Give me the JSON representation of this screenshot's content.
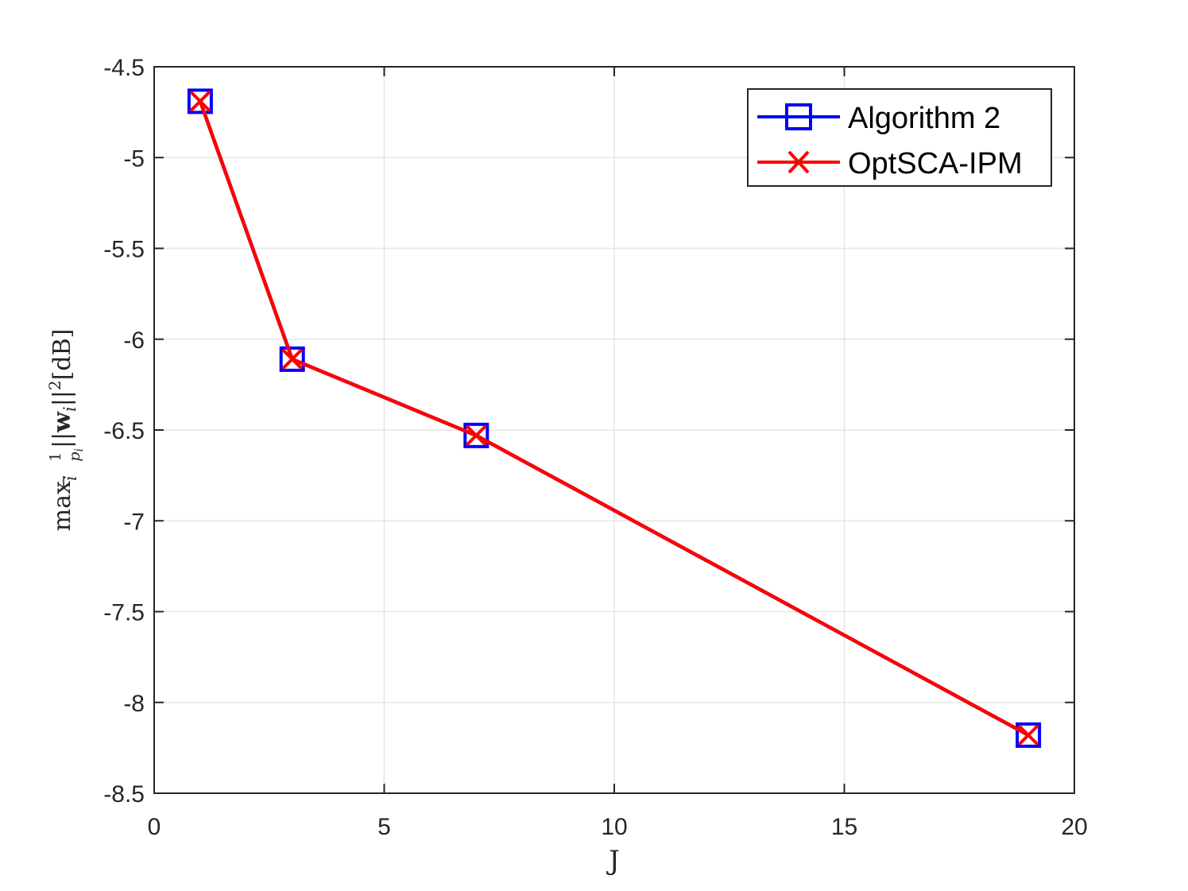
{
  "chart_data": {
    "type": "line",
    "x_label": "J",
    "y_label": {
      "prefix": "max",
      "prefix_sub": "i",
      "frac_num": "1",
      "frac_den": "p",
      "frac_den_sub": "i",
      "norm_open": "||",
      "vec": "w",
      "vec_sub": "i",
      "norm_close": "||",
      "power": "2",
      "unit": "[dB]"
    },
    "xlim": [
      0,
      20
    ],
    "ylim": [
      -8.5,
      -4.5
    ],
    "x_ticks": [
      "0",
      "5",
      "10",
      "15",
      "20"
    ],
    "y_ticks": [
      "-4.5",
      "-5",
      "-5.5",
      "-6",
      "-6.5",
      "-7",
      "-7.5",
      "-8",
      "-8.5"
    ],
    "grid": true,
    "legend_position": "top-right",
    "series": [
      {
        "name": "Algorithm 2",
        "color": "#0000ff",
        "marker": "square",
        "x": [
          1,
          3,
          7,
          19
        ],
        "y": [
          -4.69,
          -6.11,
          -6.53,
          -8.18
        ]
      },
      {
        "name": "OptSCA-IPM",
        "color": "#ff0000",
        "marker": "x",
        "x": [
          1,
          3,
          7,
          19
        ],
        "y": [
          -4.69,
          -6.11,
          -6.53,
          -8.18
        ]
      }
    ]
  }
}
